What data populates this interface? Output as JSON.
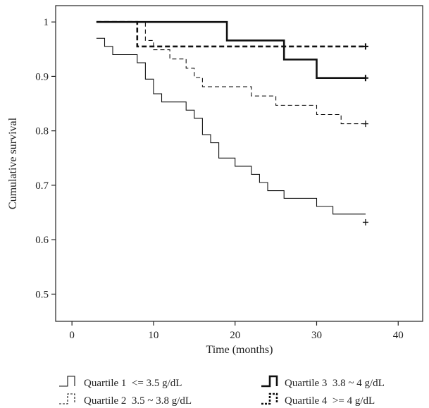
{
  "chart_data": {
    "type": "line",
    "subtype": "kaplan-meier step",
    "xlabel": "Time (months)",
    "ylabel": "Cumulative survival",
    "xlim": [
      -2,
      43
    ],
    "ylim": [
      0.45,
      1.03
    ],
    "xticks": [
      "0",
      "10",
      "20",
      "30",
      "40"
    ],
    "xtick_values": [
      0,
      10,
      20,
      30,
      40
    ],
    "yticks": [
      "0.5",
      "0.6",
      "0.7",
      "0.8",
      "0.9",
      "1"
    ],
    "ytick_values": [
      0.5,
      0.6,
      0.7,
      0.8,
      0.9,
      1.0
    ],
    "grid": false,
    "legend_position": "bottom",
    "series": [
      {
        "name": "Quartile 1  <= 3.5 g/dL",
        "line_style": "solid-thin",
        "points": [
          [
            3,
            0.97
          ],
          [
            4,
            0.955
          ],
          [
            5,
            0.94
          ],
          [
            8,
            0.925
          ],
          [
            9,
            0.895
          ],
          [
            10,
            0.868
          ],
          [
            11,
            0.853
          ],
          [
            14,
            0.838
          ],
          [
            15,
            0.823
          ],
          [
            16,
            0.793
          ],
          [
            17,
            0.778
          ],
          [
            18,
            0.75
          ],
          [
            20,
            0.735
          ],
          [
            22,
            0.72
          ],
          [
            23,
            0.705
          ],
          [
            24,
            0.69
          ],
          [
            26,
            0.676
          ],
          [
            30,
            0.661
          ],
          [
            32,
            0.647
          ],
          [
            36,
            0.647
          ]
        ],
        "censor": [
          [
            36,
            0.632
          ]
        ]
      },
      {
        "name": "Quartile 2  3.5 ~ 3.8 g/dL",
        "line_style": "dashed-thin",
        "points": [
          [
            3,
            1.0
          ],
          [
            9,
            0.966
          ],
          [
            10,
            0.949
          ],
          [
            12,
            0.932
          ],
          [
            14,
            0.915
          ],
          [
            15,
            0.898
          ],
          [
            16,
            0.881
          ],
          [
            22,
            0.864
          ],
          [
            25,
            0.847
          ],
          [
            30,
            0.83
          ],
          [
            33,
            0.813
          ],
          [
            36,
            0.813
          ]
        ],
        "censor": [
          [
            36,
            0.813
          ]
        ]
      },
      {
        "name": "Quartile 3  3.8 ~ 4 g/dL",
        "line_style": "solid-thick",
        "points": [
          [
            3,
            1.0
          ],
          [
            19,
            0.966
          ],
          [
            26,
            0.931
          ],
          [
            30,
            0.897
          ],
          [
            36,
            0.897
          ]
        ],
        "censor": [
          [
            36,
            0.897
          ]
        ]
      },
      {
        "name": "Quartile 4  >= 4 g/dL",
        "line_style": "dashed-thick",
        "points": [
          [
            3,
            1.0
          ],
          [
            8,
            0.955
          ],
          [
            36,
            0.955
          ]
        ],
        "censor": [
          [
            36,
            0.955
          ]
        ]
      }
    ]
  }
}
